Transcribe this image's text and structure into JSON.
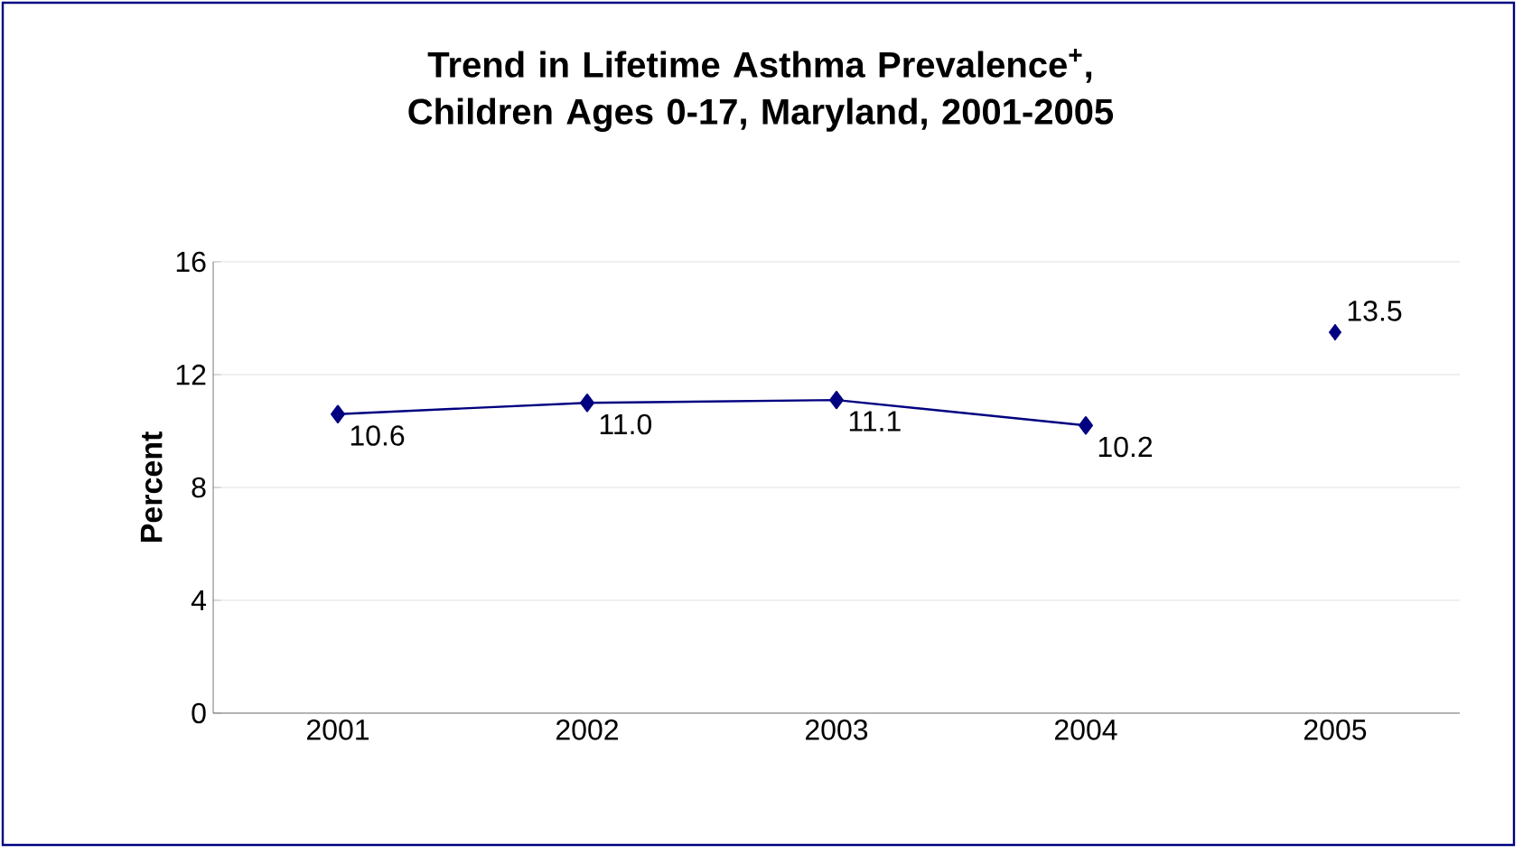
{
  "chart_data": {
    "type": "line",
    "title": "Trend in Lifetime Asthma Prevalence$^{+}$, Children Ages 0-17, Maryland,  2001-2005",
    "ylabel": "Percent",
    "categories": [
      "2001",
      "2002",
      "2003",
      "2004",
      "2005"
    ],
    "series": [
      {
        "color": "#000080",
        "values": [
          10.6,
          11.0,
          11.1,
          10.2,
          null
        ],
        "value_labels": [
          "10.6",
          "11.0",
          "11.1",
          "10.2",
          null
        ]
      },
      {
        "type": "scatter",
        "color": "#000080",
        "values": [
          null,
          null,
          null,
          null,
          13.5
        ],
        "value_labels": [
          null,
          null,
          null,
          null,
          "13.5"
        ]
      }
    ],
    "ylim": [
      0,
      16
    ],
    "yticks": [
      0,
      4,
      8,
      12,
      16
    ],
    "grid": "y",
    "marker": "diamond",
    "line_style": "solid"
  }
}
